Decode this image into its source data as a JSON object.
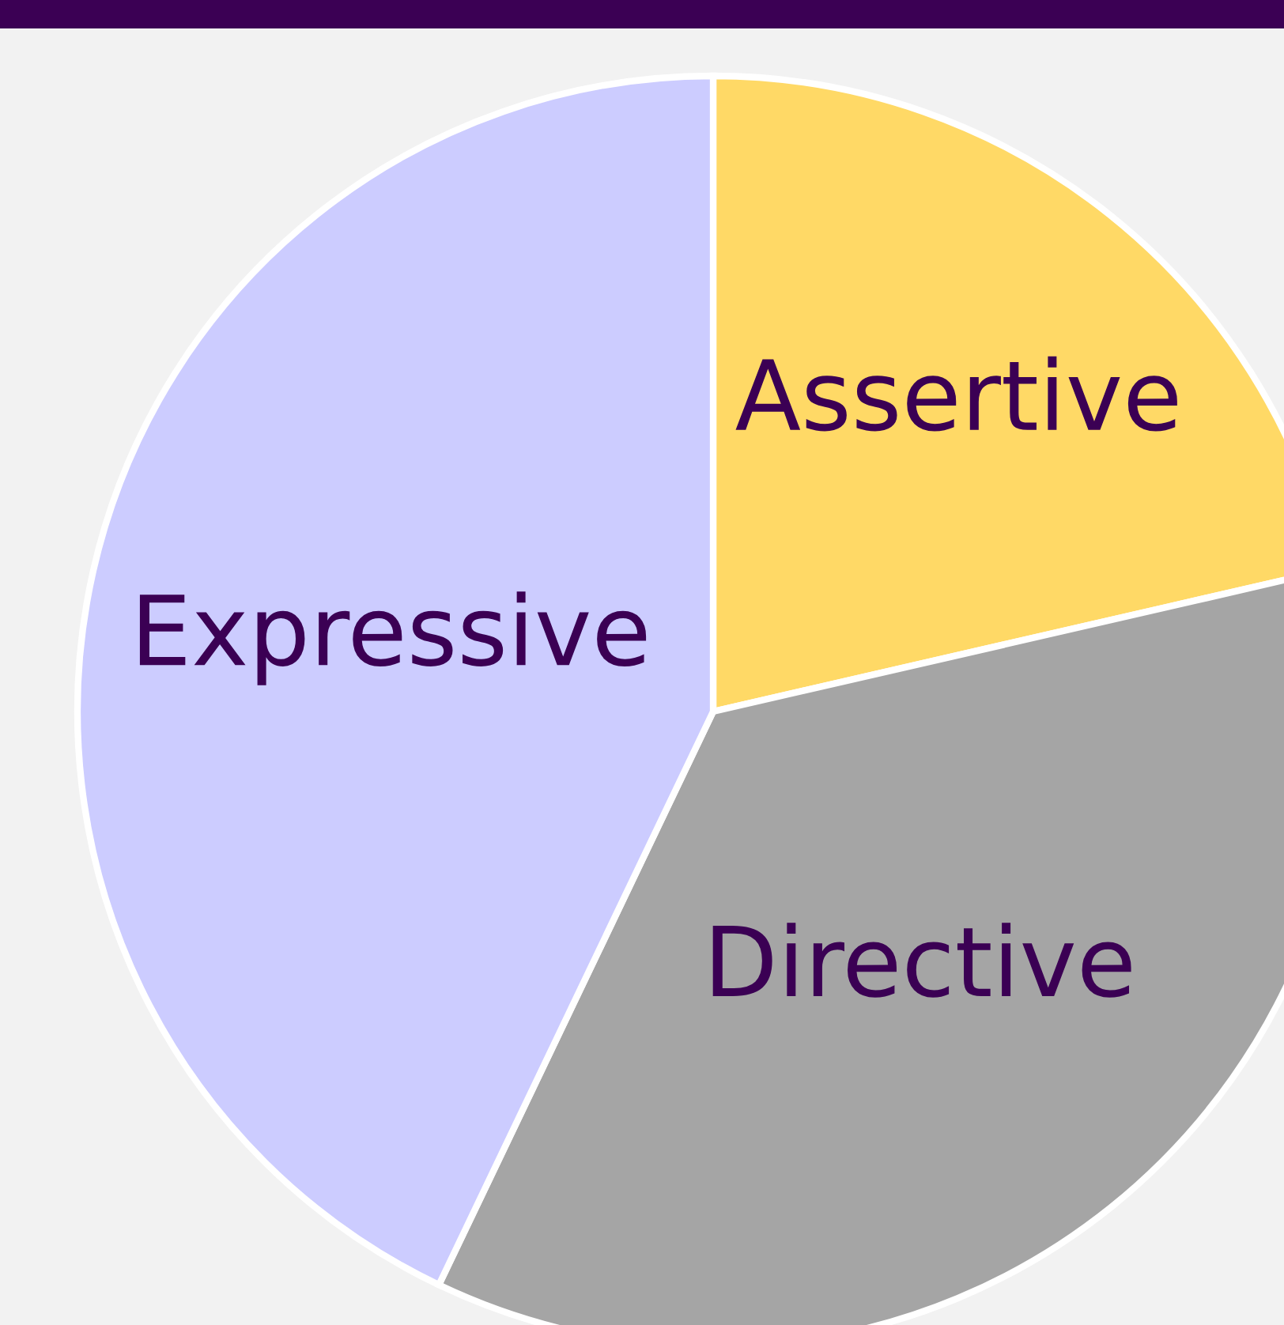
{
  "chart_data": {
    "type": "pie",
    "categories": [
      "Assertive",
      "Directive",
      "Expressive"
    ],
    "values": [
      21.4,
      35.7,
      42.9
    ],
    "colors": [
      "#ffd966",
      "#a5a5a5",
      "#ccccff"
    ]
  }
}
